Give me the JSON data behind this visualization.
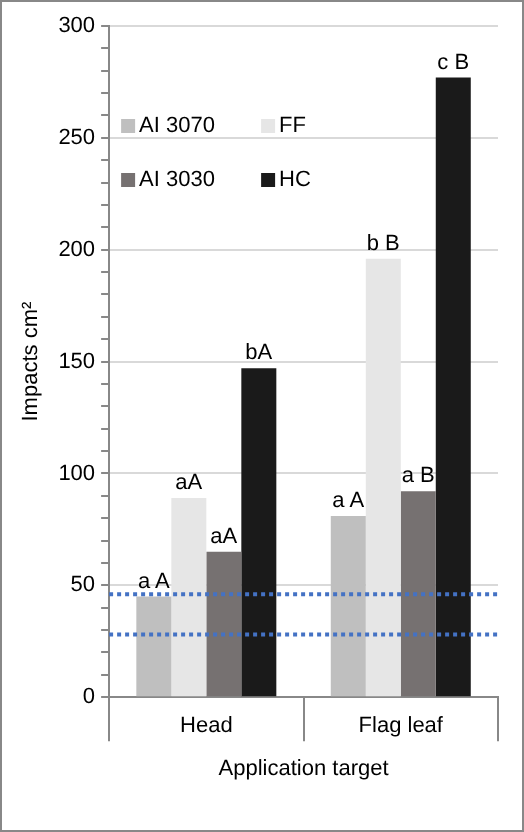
{
  "chart_data": {
    "type": "bar",
    "xlabel": "Application target",
    "ylabel": "Impacts cm²",
    "categories": [
      "Head",
      "Flag leaf"
    ],
    "series": [
      {
        "name": "AI 3070",
        "color": "#bfbfbf",
        "values": [
          45,
          81
        ],
        "value_labels": [
          "a A",
          "a A"
        ]
      },
      {
        "name": "FF",
        "color": "#e6e6e6",
        "values": [
          89,
          196
        ],
        "value_labels": [
          "aA",
          "b B"
        ]
      },
      {
        "name": "AI 3030",
        "color": "#767171",
        "values": [
          65,
          92
        ],
        "value_labels": [
          "aA",
          "a B"
        ]
      },
      {
        "name": "HC",
        "color": "#1a1a1a",
        "values": [
          147,
          277
        ],
        "value_labels": [
          "bA",
          "c B"
        ]
      }
    ],
    "ylim": [
      0,
      300
    ],
    "yticks": [
      0,
      {
        "value": 10,
        "label": null
      },
      {
        "value": 20,
        "label": null
      },
      {
        "value": 30,
        "label": null
      },
      {
        "value": 40,
        "label": null
      },
      50,
      {
        "value": 60,
        "label": null
      },
      {
        "value": 70,
        "label": null
      },
      {
        "value": 80,
        "label": null
      },
      {
        "value": 90,
        "label": null
      },
      100,
      {
        "value": 110,
        "label": null
      },
      {
        "value": 120,
        "label": null
      },
      {
        "value": 130,
        "label": null
      },
      {
        "value": 140,
        "label": null
      },
      150,
      {
        "value": 160,
        "label": null
      },
      {
        "value": 170,
        "label": null
      },
      {
        "value": 180,
        "label": null
      },
      {
        "value": 190,
        "label": null
      },
      200,
      {
        "value": 210,
        "label": null
      },
      {
        "value": 220,
        "label": null
      },
      {
        "value": 230,
        "label": null
      },
      {
        "value": 240,
        "label": null
      },
      250,
      {
        "value": 260,
        "label": null
      },
      {
        "value": 270,
        "label": null
      },
      {
        "value": 280,
        "label": null
      },
      {
        "value": 290,
        "label": null
      },
      300
    ],
    "ref_lines": [
      {
        "axis": "y",
        "value": 46,
        "color": "#4472c4",
        "line_style": "dotted"
      },
      {
        "axis": "y",
        "value": 28,
        "color": "#4472c4",
        "line_style": "dotted"
      }
    ],
    "grid": "y",
    "legend": "top left"
  }
}
